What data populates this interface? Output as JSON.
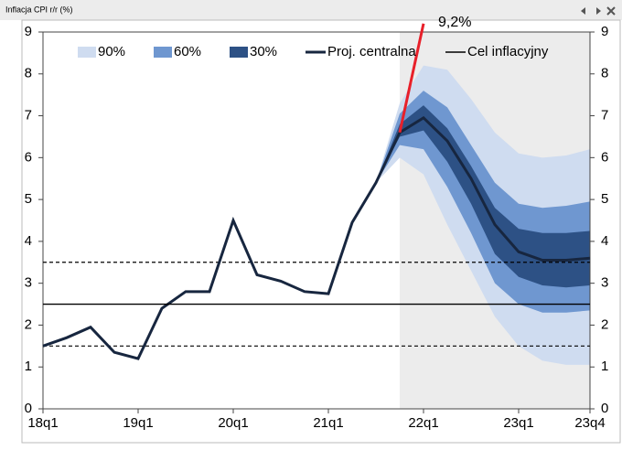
{
  "chart_data": {
    "type": "line",
    "window_title": "Inflacja CPI r/r (%)",
    "categories": [
      "18q1",
      null,
      null,
      null,
      "19q1",
      null,
      null,
      null,
      "20q1",
      null,
      null,
      null,
      "21q1",
      null,
      null,
      null,
      "22q1",
      null,
      null,
      null,
      "23q1",
      null,
      null,
      "23q4"
    ],
    "ylim": [
      0,
      9
    ],
    "yticks": [
      0,
      1,
      2,
      3,
      4,
      5,
      6,
      7,
      8,
      9
    ],
    "y2lim": [
      0,
      9
    ],
    "y2ticks": [
      0,
      1,
      2,
      3,
      4,
      5,
      6,
      7,
      8,
      9
    ],
    "bands": [
      {
        "name": "90%",
        "color": "#cfdcf0",
        "upper": [
          null,
          null,
          null,
          null,
          null,
          null,
          null,
          null,
          null,
          null,
          null,
          null,
          null,
          null,
          5.4,
          7.3,
          8.2,
          8.1,
          7.4,
          6.6,
          6.1,
          6.0,
          6.05,
          6.2
        ],
        "lower": [
          null,
          null,
          null,
          null,
          null,
          null,
          null,
          null,
          null,
          null,
          null,
          null,
          null,
          null,
          5.4,
          6.0,
          5.6,
          4.4,
          3.3,
          2.2,
          1.5,
          1.15,
          1.05,
          1.05
        ]
      },
      {
        "name": "60%",
        "color": "#6f97d0",
        "upper": [
          null,
          null,
          null,
          null,
          null,
          null,
          null,
          null,
          null,
          null,
          null,
          null,
          null,
          null,
          5.4,
          7.05,
          7.6,
          7.2,
          6.3,
          5.4,
          4.9,
          4.8,
          4.85,
          4.95
        ],
        "lower": [
          null,
          null,
          null,
          null,
          null,
          null,
          null,
          null,
          null,
          null,
          null,
          null,
          null,
          null,
          5.4,
          6.3,
          6.2,
          5.3,
          4.2,
          3.0,
          2.5,
          2.3,
          2.3,
          2.35
        ]
      },
      {
        "name": "30%",
        "color": "#2d5185",
        "upper": [
          null,
          null,
          null,
          null,
          null,
          null,
          null,
          null,
          null,
          null,
          null,
          null,
          null,
          null,
          5.4,
          6.8,
          7.25,
          6.7,
          5.8,
          4.8,
          4.3,
          4.2,
          4.2,
          4.25
        ],
        "lower": [
          null,
          null,
          null,
          null,
          null,
          null,
          null,
          null,
          null,
          null,
          null,
          null,
          null,
          null,
          5.4,
          6.5,
          6.65,
          5.9,
          4.9,
          3.7,
          3.15,
          2.95,
          2.9,
          2.95
        ]
      }
    ],
    "series": [
      {
        "name": "Proj. centralna",
        "color": "#17263f",
        "values": [
          1.5,
          1.7,
          1.95,
          1.35,
          1.2,
          2.4,
          2.8,
          2.8,
          4.5,
          3.2,
          3.05,
          2.8,
          2.75,
          4.45,
          5.4,
          6.6,
          6.95,
          6.4,
          5.5,
          4.4,
          3.75,
          3.55,
          3.55,
          3.6
        ]
      },
      {
        "name": "Cel inflacyjny",
        "color": "#000000",
        "value": 2.5
      }
    ],
    "tolerance": [
      1.5,
      3.5
    ],
    "annotation": {
      "label": "9,2%",
      "value": 9.2,
      "color": "#e8202a"
    }
  }
}
